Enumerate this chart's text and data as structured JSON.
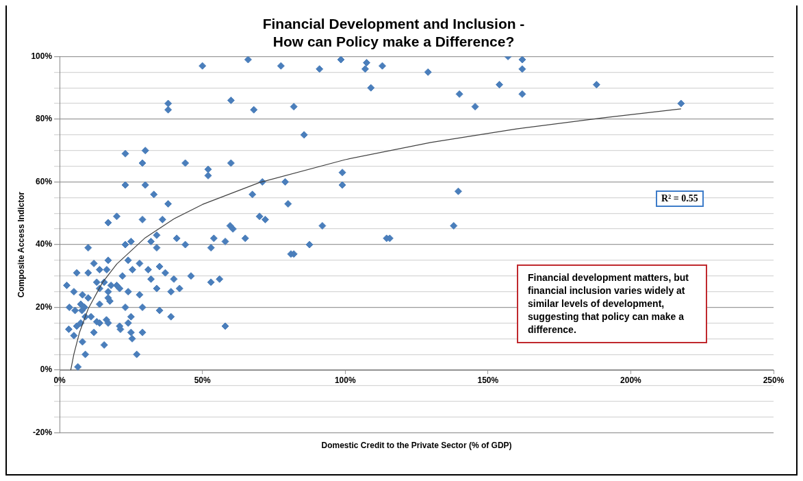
{
  "chart_data": {
    "type": "scatter",
    "title": "Financial Development and Inclusion -\nHow can Policy make a Difference?",
    "xlabel": "Domestic Credit to the Private Sector (% of GDP)",
    "ylabel": "Composite Access Indictor",
    "xlim": [
      0,
      250
    ],
    "ylim": [
      -20,
      100
    ],
    "xticks": [
      {
        "value": 0,
        "label": "0%"
      },
      {
        "value": 50,
        "label": "50%"
      },
      {
        "value": 100,
        "label": "100%"
      },
      {
        "value": 150,
        "label": "150%"
      },
      {
        "value": 200,
        "label": "200%"
      },
      {
        "value": 250,
        "label": "250%"
      }
    ],
    "yticks": [
      {
        "value": -20,
        "label": "-20%"
      },
      {
        "value": -15,
        "label": null
      },
      {
        "value": -10,
        "label": null
      },
      {
        "value": -5,
        "label": null
      },
      {
        "value": 0,
        "label": "0%"
      },
      {
        "value": 5,
        "label": null
      },
      {
        "value": 10,
        "label": null
      },
      {
        "value": 15,
        "label": null
      },
      {
        "value": 20,
        "label": "20%"
      },
      {
        "value": 25,
        "label": null
      },
      {
        "value": 30,
        "label": null
      },
      {
        "value": 35,
        "label": null
      },
      {
        "value": 40,
        "label": "40%"
      },
      {
        "value": 45,
        "label": null
      },
      {
        "value": 50,
        "label": null
      },
      {
        "value": 55,
        "label": null
      },
      {
        "value": 60,
        "label": "60%"
      },
      {
        "value": 65,
        "label": null
      },
      {
        "value": 70,
        "label": null
      },
      {
        "value": 75,
        "label": null
      },
      {
        "value": 80,
        "label": "80%"
      },
      {
        "value": 85,
        "label": null
      },
      {
        "value": 90,
        "label": null
      },
      {
        "value": 95,
        "label": null
      },
      {
        "value": 100,
        "label": "100%"
      }
    ],
    "grid": "y",
    "marker": "diamond",
    "series": [
      {
        "color": "#4a7ebb",
        "x": [
          50,
          38,
          38,
          23,
          30,
          29,
          44,
          52,
          52,
          23,
          30,
          33,
          38,
          17,
          20,
          29,
          36,
          34,
          32,
          34,
          41,
          44,
          53,
          23,
          25,
          10,
          12,
          17,
          6,
          10,
          14,
          16.5,
          24,
          28,
          25.5,
          31,
          35,
          37,
          22,
          32,
          40,
          46,
          53,
          2.5,
          13,
          15.6,
          14,
          18,
          20,
          21,
          17,
          24,
          34,
          39,
          42,
          5,
          8,
          10,
          17,
          17.6,
          28,
          3.4,
          5.4,
          7.4,
          8.7,
          7.8,
          14,
          23,
          29,
          35,
          39,
          9,
          11,
          7.4,
          6,
          3.2,
          13,
          14,
          16.4,
          17,
          25,
          24,
          21,
          21.3,
          12,
          25,
          29,
          5,
          25.4,
          8,
          15.6,
          9,
          27,
          6.4,
          66,
          77.5,
          91,
          98.5,
          107.5,
          107,
          109,
          113,
          60,
          68,
          82,
          85.6,
          60,
          71,
          79,
          99,
          99,
          67.5,
          80,
          70,
          72,
          59.7,
          60.7,
          54,
          58,
          65,
          92,
          87.5,
          81,
          82,
          56,
          58,
          114.5,
          157,
          162,
          162,
          129,
          154,
          188,
          140,
          162,
          145.5,
          217.6,
          139.6,
          138,
          115.6
        ],
        "values": [
          97,
          85,
          83,
          69,
          70,
          66,
          66,
          64,
          62,
          59,
          59,
          56,
          53,
          47,
          49,
          48,
          48,
          43,
          41,
          39,
          42,
          40,
          39,
          40,
          41,
          39,
          34,
          35,
          31,
          31,
          32,
          32,
          35,
          34,
          32,
          32,
          33,
          31,
          30,
          29,
          29,
          30,
          28,
          27,
          28,
          28,
          26,
          27,
          27,
          26,
          25,
          25,
          26,
          25,
          26,
          25,
          24,
          23,
          23,
          22,
          24,
          20,
          19,
          21,
          20,
          19,
          21,
          20,
          20,
          19,
          17,
          17,
          17,
          15,
          14,
          13,
          15.4,
          15,
          16,
          15,
          17,
          15,
          14,
          13,
          12,
          12,
          12,
          11,
          10,
          9,
          8,
          5,
          5,
          1,
          99,
          97,
          96,
          99,
          98,
          96,
          90,
          97,
          86,
          83,
          84,
          75,
          66,
          60,
          60,
          63,
          59,
          56,
          53,
          49,
          48,
          46,
          45,
          42,
          41,
          42,
          46,
          40,
          37,
          37,
          29,
          14,
          42,
          100,
          99,
          96,
          95,
          91,
          91,
          88,
          88,
          84,
          85,
          57,
          46,
          42
        ]
      },
      {
        "type": "line",
        "color": "#404040",
        "marker": "none",
        "x": [
          3.9,
          5,
          7,
          10,
          15,
          20,
          30,
          40,
          50,
          70,
          100,
          130,
          160,
          190,
          217.6
        ],
        "values": [
          0,
          5.1,
          12.1,
          19.5,
          27.9,
          33.8,
          42.2,
          48.2,
          52.8,
          59.8,
          67.1,
          72.6,
          76.9,
          80.4,
          83.3
        ]
      }
    ],
    "annotations": [
      "R² = 0.55",
      "Financial development matters, but financial inclusion varies widely at similar levels of development,  suggesting that policy  can make a difference."
    ]
  }
}
